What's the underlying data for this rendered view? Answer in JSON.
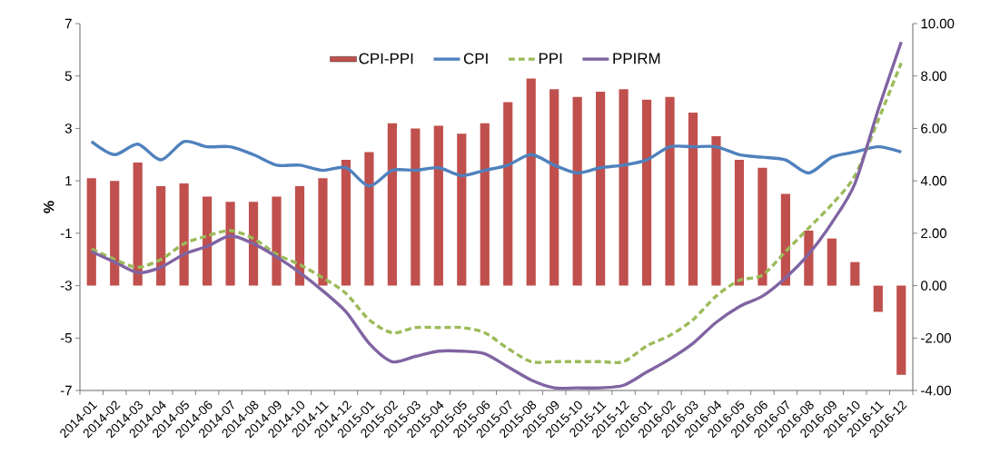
{
  "chart_data": {
    "type": "bar",
    "categories": [
      "2014-01",
      "2014-02",
      "2014-03",
      "2014-04",
      "2014-05",
      "2014-06",
      "2014-07",
      "2014-08",
      "2014-09",
      "2014-10",
      "2014-11",
      "2014-12",
      "2015-01",
      "2015-02",
      "2015-03",
      "2015-04",
      "2015-05",
      "2015-06",
      "2015-07",
      "2015-08",
      "2015-09",
      "2015-10",
      "2015-11",
      "2015-12",
      "2016-01",
      "2016-02",
      "2016-03",
      "2016-04",
      "2016-05",
      "2016-06",
      "2016-07",
      "2016-08",
      "2016-09",
      "2016-10",
      "2016-11",
      "2016-12"
    ],
    "series": [
      {
        "name": "CPI-PPI",
        "axis": "y2",
        "color": "#c0504d",
        "values": [
          4.1,
          4.0,
          4.7,
          3.8,
          3.9,
          3.4,
          3.2,
          3.2,
          3.4,
          3.8,
          4.1,
          4.8,
          5.1,
          6.2,
          6.0,
          6.1,
          5.8,
          6.2,
          7.0,
          7.9,
          7.5,
          7.2,
          7.4,
          7.5,
          7.1,
          7.2,
          6.6,
          5.7,
          4.8,
          4.5,
          3.5,
          2.1,
          1.8,
          0.9,
          -1.0,
          -3.4
        ]
      },
      {
        "name": "CPI",
        "type": "line",
        "line_style": "solid",
        "color": "#4f81bd",
        "values": [
          2.5,
          2.0,
          2.4,
          1.8,
          2.5,
          2.3,
          2.3,
          2.0,
          1.6,
          1.6,
          1.4,
          1.5,
          0.8,
          1.4,
          1.4,
          1.5,
          1.2,
          1.4,
          1.6,
          2.0,
          1.6,
          1.3,
          1.5,
          1.6,
          1.8,
          2.3,
          2.3,
          2.3,
          2.0,
          1.9,
          1.8,
          1.3,
          1.9,
          2.1,
          2.3,
          2.1
        ]
      },
      {
        "name": "PPI",
        "type": "line",
        "line_style": "dashed",
        "color": "#9bbb59",
        "values": [
          -1.6,
          -2.0,
          -2.3,
          -2.0,
          -1.4,
          -1.1,
          -0.9,
          -1.2,
          -1.8,
          -2.2,
          -2.7,
          -3.3,
          -4.3,
          -4.8,
          -4.6,
          -4.6,
          -4.6,
          -4.8,
          -5.4,
          -5.9,
          -5.9,
          -5.9,
          -5.9,
          -5.9,
          -5.3,
          -4.9,
          -4.3,
          -3.4,
          -2.8,
          -2.6,
          -1.7,
          -0.8,
          0.1,
          1.2,
          3.3,
          5.5
        ]
      },
      {
        "name": "PPIRM",
        "type": "line",
        "line_style": "solid",
        "color": "#8064a2",
        "values": [
          -1.7,
          -2.1,
          -2.5,
          -2.3,
          -1.8,
          -1.5,
          -1.1,
          -1.4,
          -1.9,
          -2.5,
          -3.2,
          -4.0,
          -5.2,
          -5.9,
          -5.7,
          -5.5,
          -5.5,
          -5.6,
          -6.1,
          -6.6,
          -6.9,
          -6.9,
          -6.9,
          -6.8,
          -6.3,
          -5.8,
          -5.2,
          -4.4,
          -3.8,
          -3.4,
          -2.7,
          -1.8,
          -0.6,
          0.9,
          3.7,
          6.3
        ]
      }
    ],
    "ylabel": "%",
    "ylim": [
      -7,
      7
    ],
    "yticks": [
      -7,
      -5,
      -3,
      -1,
      1,
      3,
      5,
      7
    ],
    "y2lim": [
      -4,
      10
    ],
    "y2ticks": [
      {
        "value": -4,
        "label": "-4.00"
      },
      {
        "value": -2,
        "label": "-2.00"
      },
      {
        "value": 0,
        "label": "0.00"
      },
      {
        "value": 2,
        "label": "2.00"
      },
      {
        "value": 4,
        "label": "4.00"
      },
      {
        "value": 6,
        "label": "6.00"
      },
      {
        "value": 8,
        "label": "8.00"
      },
      {
        "value": 10,
        "label": "10.00"
      }
    ],
    "legend": "top",
    "marker": "none",
    "grid": false
  }
}
